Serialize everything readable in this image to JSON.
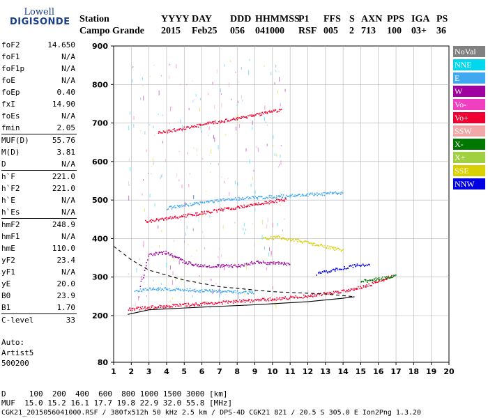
{
  "logo": {
    "line1": "Lowell",
    "line2": "DIGISONDE"
  },
  "header": {
    "labels": [
      "Station",
      "YYYY",
      "DAY",
      "DDD",
      "HHMMSS",
      "P1",
      "FFS",
      "S",
      "AXN",
      "PPS",
      "IGA",
      "PS"
    ],
    "values": [
      "Campo Grande",
      "2015",
      "Feb25",
      "056",
      "041000",
      "RSF",
      "005",
      "2",
      "713",
      "100",
      "03+",
      "36"
    ]
  },
  "params": [
    {
      "name": "foF2",
      "value": "14.650"
    },
    {
      "name": "foF1",
      "value": "N/A"
    },
    {
      "name": "foF1p",
      "value": "N/A"
    },
    {
      "name": "foE",
      "value": "N/A"
    },
    {
      "name": "foEp",
      "value": "0.40"
    },
    {
      "name": "fxI",
      "value": "14.90"
    },
    {
      "name": "foEs",
      "value": "N/A"
    },
    {
      "name": "fmin",
      "value": "2.05"
    },
    {
      "name": "MUF(D)",
      "value": "55.76",
      "sep": true
    },
    {
      "name": "M(D)",
      "value": "3.81"
    },
    {
      "name": "D",
      "value": "N/A"
    },
    {
      "name": "h`F",
      "value": "221.0",
      "sep": true
    },
    {
      "name": "h`F2",
      "value": "221.0"
    },
    {
      "name": "h`E",
      "value": "N/A"
    },
    {
      "name": "h`Es",
      "value": "N/A"
    },
    {
      "name": "hmF2",
      "value": "248.9",
      "sep": true
    },
    {
      "name": "hmF1",
      "value": "N/A"
    },
    {
      "name": "hmE",
      "value": "110.0"
    },
    {
      "name": "yF2",
      "value": "23.4"
    },
    {
      "name": "yF1",
      "value": "N/A"
    },
    {
      "name": "yE",
      "value": "20.0"
    },
    {
      "name": "B0",
      "value": "23.9"
    },
    {
      "name": "B1",
      "value": "1.70"
    },
    {
      "name": "C-level",
      "value": "33",
      "sep": true
    }
  ],
  "auto": {
    "line1": "Auto:",
    "line2": "Artist5",
    "line3": "500200"
  },
  "legend": [
    {
      "label": "NoVal",
      "color": "#808080"
    },
    {
      "label": "NNE",
      "color": "#00d8f0"
    },
    {
      "label": "E",
      "color": "#40a8f0"
    },
    {
      "label": "W",
      "color": "#a000a0"
    },
    {
      "label": "Vo-",
      "color": "#f040c0"
    },
    {
      "label": "Vo+",
      "color": "#f00030"
    },
    {
      "label": "SSW",
      "color": "#f0a8a8"
    },
    {
      "label": "X-",
      "color": "#007800"
    },
    {
      "label": "X+",
      "color": "#a0d040"
    },
    {
      "label": "SSE",
      "color": "#d8d000"
    },
    {
      "label": "NNW",
      "color": "#0000e0"
    }
  ],
  "footer": {
    "line1": "D     100  200  400  600  800 1000 1500 3000 [km]",
    "line2": "MUF  15.0 15.2 16.1 17.7 19.8 22.9 32.0 55.8 [MHz]",
    "line3": "CGK21_2015056041000.RSF / 380fx512h 50 kHz 2.5 km / DPS-4D CGK21 821 / 20.5 S 305.0 E Ion2Png 1.3.20"
  },
  "chart_data": {
    "type": "scatter",
    "x_ticks": [
      "1",
      "2",
      "3",
      "4",
      "5",
      "6",
      "7",
      "8",
      "9",
      "10",
      "11",
      "12",
      "13",
      "14",
      "15",
      "16",
      "17",
      "18",
      "19",
      "20"
    ],
    "y_ticks": [
      "900",
      "800",
      "700",
      "600",
      "500",
      "400",
      "300",
      "200",
      "80"
    ],
    "xlim": [
      1,
      20
    ],
    "y_tick_values": [
      900,
      800,
      700,
      600,
      500,
      400,
      300,
      200,
      80
    ],
    "grid": true,
    "legend_position": "right",
    "traces": [
      {
        "name": "E",
        "color": "#40a8f0",
        "points": [
          [
            2.2,
            265
          ],
          [
            3,
            270
          ],
          [
            4,
            270
          ],
          [
            5,
            268
          ],
          [
            6,
            266
          ],
          [
            7,
            264
          ],
          [
            8,
            262
          ],
          [
            9,
            262
          ]
        ]
      },
      {
        "name": "E-upper",
        "color": "#40a8f0",
        "points": [
          [
            4,
            480
          ],
          [
            6,
            495
          ],
          [
            8,
            505
          ],
          [
            10,
            510
          ],
          [
            12,
            515
          ],
          [
            14,
            520
          ]
        ]
      },
      {
        "name": "Vo+",
        "color": "#f00030",
        "points": [
          [
            1.8,
            218
          ],
          [
            4,
            226
          ],
          [
            6,
            232
          ],
          [
            8,
            238
          ],
          [
            10,
            244
          ],
          [
            12,
            252
          ],
          [
            14,
            265
          ],
          [
            15,
            275
          ],
          [
            16,
            290
          ],
          [
            16.8,
            305
          ]
        ]
      },
      {
        "name": "Vo+ second hop",
        "color": "#f00030",
        "points": [
          [
            2.8,
            445
          ],
          [
            5,
            460
          ],
          [
            7,
            475
          ],
          [
            9,
            490
          ],
          [
            10.8,
            503
          ]
        ]
      },
      {
        "name": "Vo+ third hop",
        "color": "#f00030",
        "points": [
          [
            3.5,
            675
          ],
          [
            5,
            688
          ],
          [
            7,
            705
          ],
          [
            9,
            722
          ],
          [
            10.5,
            735
          ]
        ]
      },
      {
        "name": "W",
        "color": "#a000a0",
        "points": [
          [
            2.5,
            280
          ],
          [
            3,
            360
          ],
          [
            4,
            365
          ],
          [
            5,
            340
          ],
          [
            6,
            330
          ],
          [
            8,
            330
          ],
          [
            9,
            340
          ],
          [
            11,
            335
          ]
        ]
      },
      {
        "name": "NNW",
        "color": "#0000e0",
        "points": [
          [
            12.5,
            310
          ],
          [
            13.5,
            320
          ],
          [
            14.5,
            330
          ],
          [
            15.5,
            335
          ]
        ]
      },
      {
        "name": "SSE",
        "color": "#d8d000",
        "points": [
          [
            9.5,
            400
          ],
          [
            10.3,
            405
          ],
          [
            11.5,
            395
          ],
          [
            13,
            380
          ],
          [
            14,
            370
          ]
        ]
      },
      {
        "name": "X-",
        "color": "#007800",
        "points": [
          [
            15,
            290
          ],
          [
            15.8,
            295
          ],
          [
            16.5,
            300
          ],
          [
            17,
            305
          ]
        ]
      }
    ],
    "profile": [
      [
        1.8,
        203
      ],
      [
        3,
        215
      ],
      [
        6,
        222
      ],
      [
        9,
        228
      ],
      [
        12,
        236
      ],
      [
        14,
        245
      ],
      [
        14.65,
        249
      ]
    ],
    "profile_dashed": [
      [
        1,
        380
      ],
      [
        2,
        345
      ],
      [
        3,
        318
      ],
      [
        5,
        292
      ],
      [
        7,
        275
      ],
      [
        10,
        262
      ],
      [
        13,
        256
      ],
      [
        14.65,
        249
      ]
    ]
  }
}
